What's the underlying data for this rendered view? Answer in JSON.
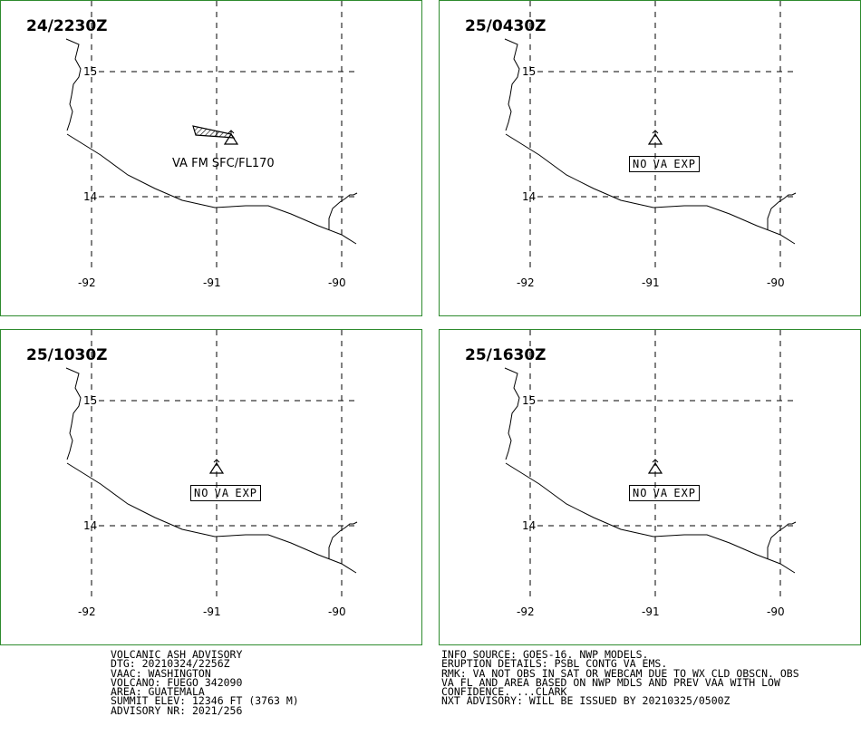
{
  "panels": [
    {
      "time": "24/2230Z",
      "status": "VA FM SFC/FL170",
      "status_boxed": false,
      "has_ash_plume": true,
      "lat_labels": [
        "15",
        "14"
      ],
      "lon_labels": [
        "-92",
        "-91",
        "-90"
      ]
    },
    {
      "time": "25/0430Z",
      "status": "NO VA EXP",
      "status_boxed": true,
      "has_ash_plume": false,
      "lat_labels": [
        "15",
        "14"
      ],
      "lon_labels": [
        "-92",
        "-91",
        "-90"
      ]
    },
    {
      "time": "25/1030Z",
      "status": "NO VA EXP",
      "status_boxed": true,
      "has_ash_plume": false,
      "lat_labels": [
        "15",
        "14"
      ],
      "lon_labels": [
        "-92",
        "-91",
        "-90"
      ]
    },
    {
      "time": "25/1630Z",
      "status": "NO VA EXP",
      "status_boxed": true,
      "has_ash_plume": false,
      "lat_labels": [
        "15",
        "14"
      ],
      "lon_labels": [
        "-92",
        "-91",
        "-90"
      ]
    }
  ],
  "advisory_left": [
    "VOLCANIC ASH ADVISORY",
    "DTG: 20210324/2256Z",
    "VAAC: WASHINGTON",
    "VOLCANO: FUEGO 342090",
    "AREA: GUATEMALA",
    "SUMMIT ELEV: 12346 FT (3763 M)",
    "ADVISORY NR: 2021/256"
  ],
  "advisory_right": [
    "INFO SOURCE: GOES-16. NWP MODELS.",
    "ERUPTION DETAILS: PSBL CONTG VA EMS.",
    "RMK: VA NOT OBS IN SAT OR WEBCAM DUE TO WX CLD OBSCN. OBS",
    "VA FL AND AREA BASED ON NWP MDLS AND PREV VAA WITH LOW",
    "CONFIDENCE. ...CLARK",
    "NXT ADVISORY: WILL BE ISSUED BY 20210325/0500Z"
  ],
  "colors": {
    "panel_border": "#2e8b2e",
    "ink": "#000000"
  },
  "icons": {
    "volcano": "volcano-triangle-icon"
  }
}
